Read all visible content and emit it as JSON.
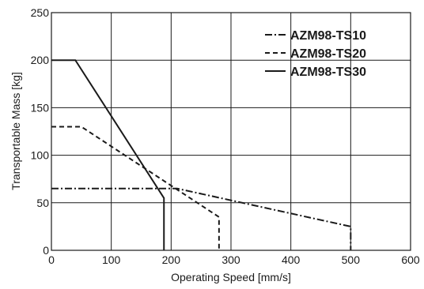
{
  "chart_data": {
    "type": "line",
    "xlabel": "Operating Speed [mm/s]",
    "ylabel": "Transportable Mass [kg]",
    "xlim": [
      0,
      600
    ],
    "ylim": [
      0,
      250
    ],
    "xticks": [
      0,
      100,
      200,
      300,
      400,
      500,
      600
    ],
    "yticks": [
      0,
      50,
      100,
      150,
      200,
      250
    ],
    "grid": true,
    "legend_position": "top-right",
    "series": [
      {
        "name": "AZM98-TS10",
        "line_style": "dash-dot",
        "color": "#1a1a1a",
        "x": [
          0,
          210,
          500,
          500
        ],
        "y": [
          65,
          65,
          25,
          0
        ]
      },
      {
        "name": "AZM98-TS20",
        "line_style": "dashed",
        "color": "#1a1a1a",
        "x": [
          0,
          50,
          280,
          280
        ],
        "y": [
          130,
          130,
          35,
          0
        ]
      },
      {
        "name": "AZM98-TS30",
        "line_style": "solid",
        "color": "#1a1a1a",
        "x": [
          0,
          40,
          188,
          188
        ],
        "y": [
          200,
          200,
          55,
          0
        ]
      }
    ]
  }
}
